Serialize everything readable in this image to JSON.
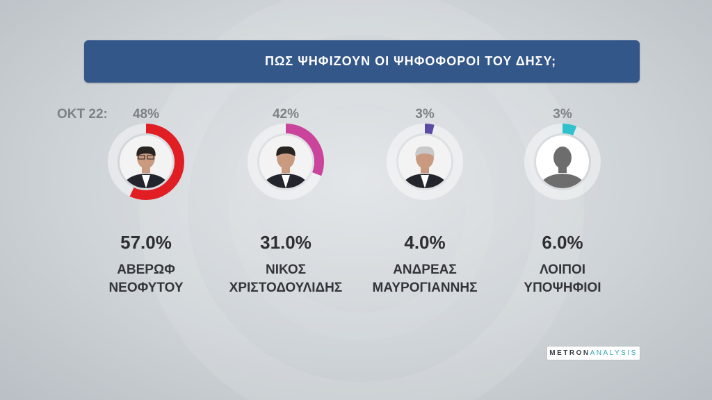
{
  "title": "ΠΩΣ ΨΗΦΙΖΟΥΝ ΟΙ ΨΗΦΟΦΟΡΟΙ ΤΟΥ ΔΗΣΥ;",
  "previous_period_label": "ΟΚΤ 22:",
  "source_logo": {
    "part1": "METRON",
    "part2": "ANALYSIS"
  },
  "chart_data": {
    "type": "pie",
    "title": "ΠΩΣ ΨΗΦΙΖΟΥΝ ΟΙ ΨΗΦΟΦΟΡΟΙ ΤΟΥ ΔΗΣΥ;",
    "categories": [
      "ΑΒΕΡΩΦ ΝΕΟΦΥΤΟΥ",
      "ΝΙΚΟΣ ΧΡΙΣΤΟΔΟΥΛΙΔΗΣ",
      "ΑΝΔΡΕΑΣ ΜΑΥΡΟΓΙΑΝΝΗΣ",
      "ΛΟΙΠΟΙ ΥΠΟΨΗΦΙΟΙ"
    ],
    "candidates": [
      {
        "name_line1": "ΑΒΕΡΩΦ",
        "name_line2": "ΝΕΟΦΥΤΟΥ",
        "value": 57.0,
        "value_label": "57.0%",
        "previous": 48,
        "previous_label": "48%",
        "color": "#e01e24",
        "photo": "man-glasses-dark-hair-icon"
      },
      {
        "name_line1": "ΝΙΚΟΣ",
        "name_line2": "ΧΡΙΣΤΟΔΟΥΛΙΔΗΣ",
        "value": 31.0,
        "value_label": "31.0%",
        "previous": 42,
        "previous_label": "42%",
        "color": "#c9449a",
        "photo": "man-dark-hair-icon"
      },
      {
        "name_line1": "ΑΝΔΡΕΑΣ",
        "name_line2": "ΜΑΥΡΟΓΙΑΝΝΗΣ",
        "value": 4.0,
        "value_label": "4.0%",
        "previous": 3,
        "previous_label": "3%",
        "color": "#5b4aa6",
        "photo": "man-grey-hair-icon"
      },
      {
        "name_line1": "ΛΟΙΠΟΙ",
        "name_line2": "ΥΠΟΨΗΦΙΟΙ",
        "value": 6.0,
        "value_label": "6.0%",
        "previous": 3,
        "previous_label": "3%",
        "color": "#2fc1cc",
        "photo": "person-silhouette-icon"
      }
    ]
  }
}
